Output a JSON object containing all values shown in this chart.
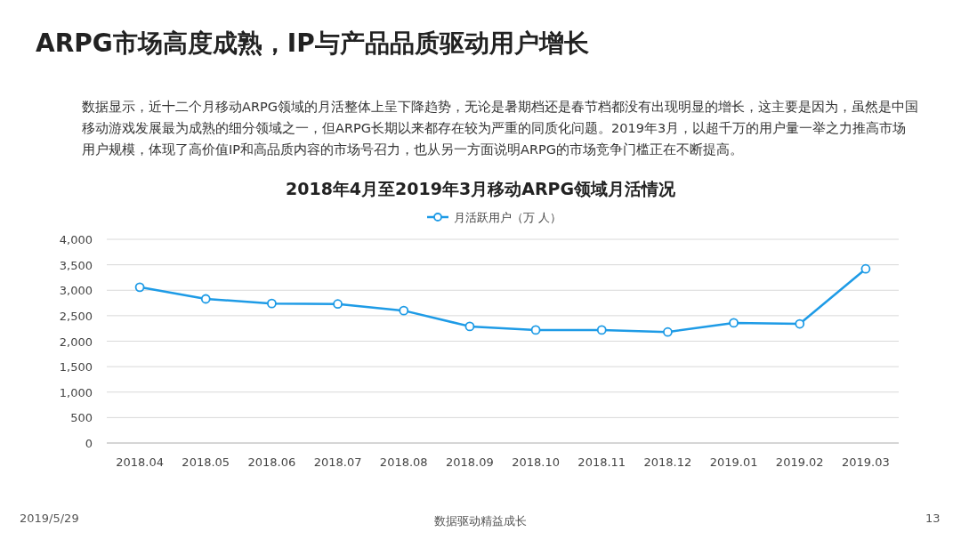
{
  "chart_data": {
    "type": "line",
    "subtitle": "ARPG市场高度成熟，IP与产品品质驱动用户增长",
    "title": "2018年4月至2019年3月移动ARPG领域月活情况",
    "annotations": [
      "数据显示，近十二个月移动ARPG领域的月活整体上呈下降趋势，无论是暑期档还是春节档都没有出现明显的增长，这主要是因为，虽然是中国移动游戏发展最为成熟的细分领域之一，但ARPG长期以来都存在较为严重的同质化问题。2019年3月，以超千万的用户量一举之力推高市场用户规模，体现了高价值IP和高品质内容的市场号召力，也从另一方面说明ARPG的市场竞争门槛正在不断提高。",
      "2019/5/29",
      "数据驱动精益成长",
      "13"
    ],
    "categories": [
      "2018.04",
      "2018.05",
      "2018.06",
      "2018.07",
      "2018.08",
      "2018.09",
      "2018.10",
      "2018.11",
      "2018.12",
      "2019.01",
      "2019.02",
      "2019.03"
    ],
    "series": [
      {
        "name": "月活跃用户（万 人）",
        "color": "#1e9be6",
        "values": [
          3060,
          2830,
          2740,
          2730,
          2600,
          2290,
          2220,
          2220,
          2180,
          2360,
          2340,
          3420
        ]
      }
    ],
    "ylim": [
      0,
      4000
    ],
    "yticks": [
      0,
      500,
      {
        "value": 1000,
        "label": "1,000"
      },
      {
        "value": 1500,
        "label": "1,500"
      },
      {
        "value": 2000,
        "label": "2,000"
      },
      {
        "value": 2500,
        "label": "2,500"
      },
      {
        "value": 3000,
        "label": "3,000"
      },
      {
        "value": 3500,
        "label": "3,500"
      },
      {
        "value": 4000,
        "label": "4,000"
      }
    ],
    "grid": "y",
    "legend": "top",
    "marker": "circle",
    "line_style": "solid"
  }
}
